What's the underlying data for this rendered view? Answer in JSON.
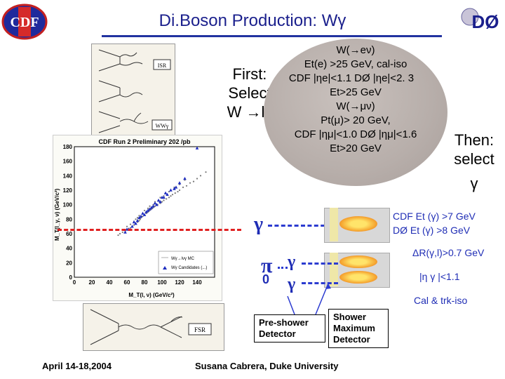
{
  "header": {
    "title": "Di.Boson Production: Wγ",
    "cdf_logo_text": "CDF",
    "d0_logo_text": "DØ"
  },
  "feynman_top": {
    "labels": [
      "ISR",
      "WWγ"
    ]
  },
  "plot": {
    "title": "CDF Run 2 Preliminary 202 /pb",
    "ylabel": "M_T(l_γ, ν) (GeV/c²)",
    "xlabel": "M_T(l, ν) (GeV/c²)",
    "legend": [
      "Wγ→lνγ MC",
      "Wγ Candidates (...)"
    ]
  },
  "chart_data": {
    "type": "scatter",
    "title": "CDF Run 2 Preliminary 202 /pb",
    "xlabel": "M_T(l, ν) (GeV/c²)",
    "ylabel": "M_T(l_γ, ν) (GeV/c²)",
    "xlim": [
      0,
      160
    ],
    "ylim": [
      0,
      180
    ],
    "x_ticks": [
      0,
      20,
      40,
      60,
      80,
      100,
      120,
      140
    ],
    "y_ticks": [
      0,
      20,
      40,
      60,
      80,
      100,
      120,
      140,
      160,
      180
    ],
    "series": [
      {
        "name": "Wγ→lνγ MC",
        "x": [
          50,
          52,
          55,
          58,
          60,
          62,
          64,
          66,
          68,
          70,
          72,
          74,
          75,
          76,
          78,
          80,
          82,
          84,
          86,
          88,
          90,
          92,
          95,
          98,
          100,
          102,
          105,
          108,
          110,
          112,
          115,
          118,
          120,
          124,
          128,
          132,
          136,
          140,
          144,
          150,
          72,
          78,
          84,
          90,
          96,
          102,
          108,
          114,
          120,
          126,
          60,
          64,
          68,
          70,
          74,
          80,
          86,
          92,
          98,
          104
        ],
        "y": [
          58,
          60,
          62,
          64,
          66,
          67,
          68,
          70,
          72,
          74,
          76,
          78,
          80,
          82,
          84,
          86,
          88,
          90,
          92,
          94,
          96,
          98,
          100,
          102,
          104,
          106,
          108,
          110,
          112,
          114,
          116,
          118,
          120,
          124,
          126,
          130,
          132,
          136,
          140,
          145,
          82,
          88,
          95,
          100,
          105,
          112,
          118,
          124,
          128,
          134,
          70,
          73,
          77,
          80,
          85,
          92,
          98,
          104,
          110,
          116
        ]
      },
      {
        "name": "Wγ Candidates (...)",
        "x": [
          58,
          62,
          66,
          70,
          72,
          76,
          80,
          84,
          88,
          92,
          96,
          100,
          104,
          110,
          116,
          120,
          126,
          68,
          74,
          82,
          90,
          98,
          106,
          114,
          60,
          78,
          86,
          94,
          102,
          140
        ],
        "y": [
          62,
          66,
          70,
          74,
          78,
          84,
          86,
          92,
          96,
          102,
          106,
          110,
          116,
          120,
          124,
          130,
          136,
          76,
          82,
          90,
          98,
          104,
          114,
          122,
          66,
          88,
          94,
          100,
          110,
          178
        ]
      }
    ]
  },
  "bubble": {
    "we_title": "W(→eν)",
    "we_line1": "Et(e) >25 GeV, cal-iso",
    "we_line2": "CDF |ηe|<1.1 DØ |ηe|<2. 3",
    "we_line3": "Et>25 GeV",
    "wm_title": "W(→μν)",
    "wm_line1": "Pt(μ)> 20 GeV,",
    "wm_line2": "CDF |ημ|<1.0 DØ |ημ|<1.6",
    "wm_line3": "Et>20 GeV"
  },
  "first": {
    "line1": "First:",
    "line2": "Select",
    "line3": "W →lν"
  },
  "then": {
    "line1": "Then:",
    "line2": "select",
    "symbol": "γ"
  },
  "photon_diagram": {
    "gamma1": "γ",
    "pi0": "π",
    "pi0_sub": "0",
    "gamma2": "γ",
    "gamma3": "γ"
  },
  "cuts": {
    "cdf_et": "CDF Et (γ) >7 GeV",
    "d0_et": "DØ   Et (γ) >8 GeV",
    "dr": "ΔR(γ,l)>0.7 GeV",
    "eta": "|η  γ |<1.1",
    "iso": "Cal & trk-iso"
  },
  "detectors": {
    "preshower": "Pre-shower Detector",
    "shower_max": "Shower Maximum Detector"
  },
  "feynman_bottom": {
    "label": "FSR"
  },
  "footer": {
    "date": "April 14-18,2004",
    "author": "Susana Cabrera, Duke University"
  },
  "colors": {
    "title": "#1a1f8c",
    "accent": "#2233a0",
    "cut_text": "#1f2db5",
    "dashed_red": "#e02020"
  }
}
